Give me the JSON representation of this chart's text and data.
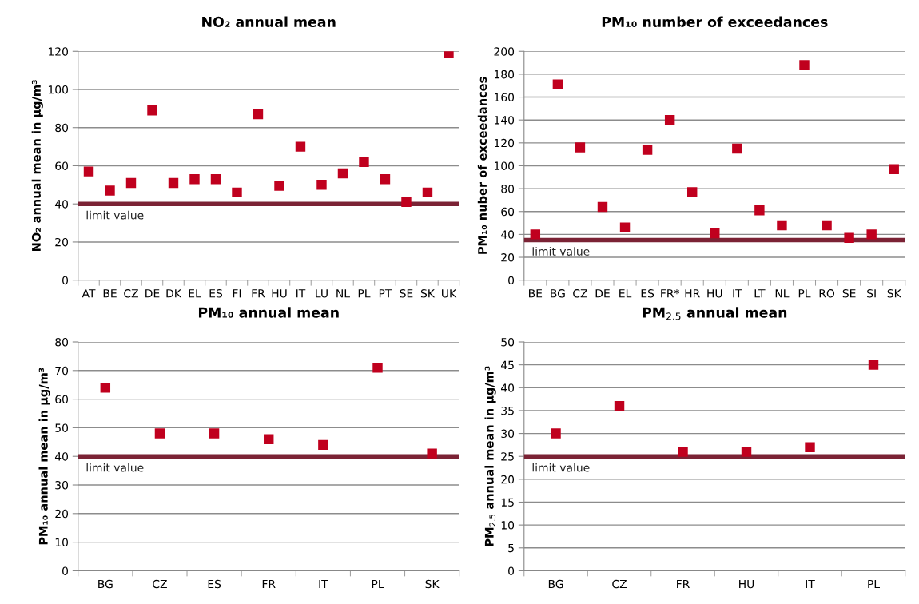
{
  "chart_data": [
    {
      "type": "scatter",
      "title": "NO₂ annual mean",
      "ylabel": "NO₂ annual mean in µg/m³",
      "categories": [
        "AT",
        "BE",
        "CZ",
        "DE",
        "DK",
        "EL",
        "ES",
        "FI",
        "FR",
        "HU",
        "IT",
        "LU",
        "NL",
        "PL",
        "PT",
        "SE",
        "SK",
        "UK"
      ],
      "series": [
        {
          "color": "#c0001e",
          "values": [
            57,
            47,
            51,
            89,
            51,
            53,
            53,
            46,
            87,
            49.5,
            70,
            50,
            56,
            62,
            53,
            41,
            46,
            119
          ]
        }
      ],
      "ylim": [
        0,
        120
      ],
      "yticks": [
        0,
        20,
        40,
        60,
        80,
        100,
        120
      ],
      "grid": "y",
      "marker": "square",
      "ref_lines": [
        {
          "axis": "y",
          "value": 40,
          "label": "limit value",
          "color": "#7b2335"
        }
      ]
    },
    {
      "type": "scatter",
      "title": "PM₁₀ number of exceedances",
      "ylabel": "PM₁₀ nuber of exceedances",
      "categories": [
        "BE",
        "BG",
        "CZ",
        "DE",
        "EL",
        "ES",
        "FR*",
        "HR",
        "HU",
        "IT",
        "LT",
        "NL",
        "PL",
        "RO",
        "SE",
        "SI",
        "SK"
      ],
      "series": [
        {
          "color": "#c0001e",
          "values": [
            40,
            171,
            116,
            64,
            46,
            114,
            140,
            77,
            41,
            115,
            61,
            48,
            188,
            48,
            37,
            40,
            97
          ]
        }
      ],
      "ylim": [
        0,
        200
      ],
      "yticks": [
        0,
        20,
        40,
        60,
        80,
        100,
        120,
        140,
        160,
        180,
        200
      ],
      "grid": "y",
      "marker": "square",
      "ref_lines": [
        {
          "axis": "y",
          "value": 35,
          "label": "limit value",
          "color": "#7b2335"
        }
      ]
    },
    {
      "type": "scatter",
      "title": "PM₁₀ annual mean",
      "ylabel": "PM₁₀ annual mean in µg/m³",
      "categories": [
        "BG",
        "CZ",
        "ES",
        "FR",
        "IT",
        "PL",
        "SK"
      ],
      "series": [
        {
          "color": "#c0001e",
          "values": [
            64,
            48,
            48,
            46,
            44,
            71,
            41
          ]
        }
      ],
      "ylim": [
        0,
        80
      ],
      "yticks": [
        0,
        10,
        20,
        30,
        40,
        50,
        60,
        70,
        80
      ],
      "grid": "y",
      "marker": "square",
      "ref_lines": [
        {
          "axis": "y",
          "value": 40,
          "label": "limit value",
          "color": "#7b2335"
        }
      ]
    },
    {
      "type": "scatter",
      "title": "PM$_{2.5}$ annual mean",
      "ylabel": "PM$_{2.5}$ annual mean in µg/m³",
      "categories": [
        "BG",
        "CZ",
        "FR",
        "HU",
        "IT",
        "PL"
      ],
      "series": [
        {
          "color": "#c0001e",
          "values": [
            30,
            36,
            26,
            26,
            27,
            45
          ]
        }
      ],
      "ylim": [
        0,
        50
      ],
      "yticks": [
        0,
        5,
        10,
        15,
        20,
        25,
        30,
        35,
        40,
        45,
        50
      ],
      "grid": "y",
      "marker": "square",
      "ref_lines": [
        {
          "axis": "y",
          "value": 25,
          "label": "limit value",
          "color": "#7b2335"
        }
      ]
    }
  ]
}
